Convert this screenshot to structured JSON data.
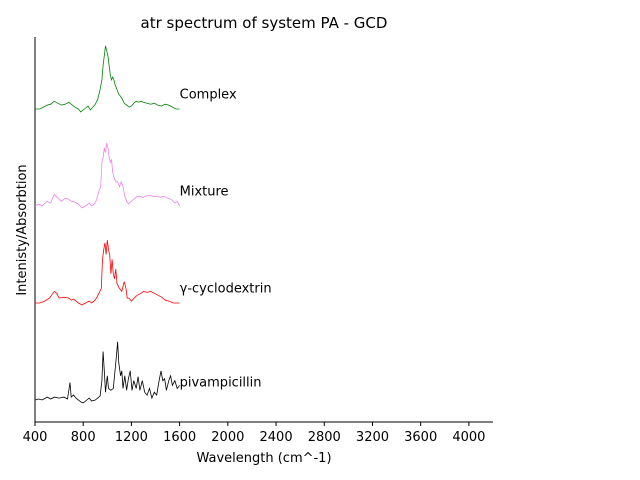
{
  "chart_data": {
    "type": "line",
    "title": "atr spectrum of system PA - GCD",
    "xlabel": "Wavelength (cm^-1)",
    "ylabel": "Intenisty/Absorbtion",
    "xlim": [
      400,
      4200
    ],
    "ylim": [
      0,
      4.0
    ],
    "x_ticks": [
      400,
      800,
      1200,
      1600,
      2000,
      2400,
      2800,
      3200,
      3600,
      4000
    ],
    "x_tick_labels": [
      "400",
      "800",
      "1200",
      "1600",
      "2000",
      "2400",
      "2800",
      "3200",
      "3600",
      "4000"
    ],
    "grid": false,
    "legend": "none",
    "series": [
      {
        "name": "pivampicillin",
        "color": "#000000",
        "label_at": [
          1600,
          0.18
        ],
        "points": [
          [
            400,
            0.0
          ],
          [
            430,
            0.01
          ],
          [
            460,
            0.0
          ],
          [
            500,
            0.03
          ],
          [
            530,
            0.01
          ],
          [
            560,
            0.03
          ],
          [
            600,
            0.02
          ],
          [
            640,
            0.03
          ],
          [
            670,
            0.01
          ],
          [
            690,
            0.18
          ],
          [
            700,
            0.03
          ],
          [
            720,
            0.05
          ],
          [
            740,
            0.02
          ],
          [
            780,
            -0.02
          ],
          [
            800,
            -0.03
          ],
          [
            830,
            0.0
          ],
          [
            850,
            0.02
          ],
          [
            870,
            -0.01
          ],
          [
            900,
            0.0
          ],
          [
            940,
            0.04
          ],
          [
            955,
            0.2
          ],
          [
            965,
            0.5
          ],
          [
            975,
            0.3
          ],
          [
            985,
            0.08
          ],
          [
            1000,
            0.25
          ],
          [
            1010,
            0.12
          ],
          [
            1030,
            0.1
          ],
          [
            1050,
            0.12
          ],
          [
            1075,
            0.45
          ],
          [
            1085,
            0.6
          ],
          [
            1095,
            0.38
          ],
          [
            1110,
            0.25
          ],
          [
            1120,
            0.3
          ],
          [
            1130,
            0.12
          ],
          [
            1145,
            0.25
          ],
          [
            1160,
            0.1
          ],
          [
            1175,
            0.22
          ],
          [
            1190,
            0.3
          ],
          [
            1205,
            0.1
          ],
          [
            1220,
            0.2
          ],
          [
            1240,
            0.12
          ],
          [
            1255,
            0.24
          ],
          [
            1270,
            0.1
          ],
          [
            1290,
            0.2
          ],
          [
            1310,
            0.08
          ],
          [
            1330,
            0.05
          ],
          [
            1350,
            0.12
          ],
          [
            1370,
            0.02
          ],
          [
            1390,
            0.08
          ],
          [
            1410,
            0.05
          ],
          [
            1430,
            0.2
          ],
          [
            1445,
            0.3
          ],
          [
            1460,
            0.2
          ],
          [
            1475,
            0.22
          ],
          [
            1490,
            0.1
          ],
          [
            1510,
            0.2
          ],
          [
            1525,
            0.25
          ],
          [
            1540,
            0.15
          ],
          [
            1560,
            0.2
          ],
          [
            1580,
            0.12
          ],
          [
            1600,
            0.15
          ]
        ]
      },
      {
        "name": "γ-cyclodextrin",
        "color": "#ff0000",
        "label_at": [
          1600,
          1.15
        ],
        "points": [
          [
            400,
            1.0
          ],
          [
            440,
            1.0
          ],
          [
            480,
            1.02
          ],
          [
            520,
            1.05
          ],
          [
            560,
            1.12
          ],
          [
            580,
            1.1
          ],
          [
            600,
            1.05
          ],
          [
            640,
            1.06
          ],
          [
            680,
            1.05
          ],
          [
            700,
            1.03
          ],
          [
            720,
            1.04
          ],
          [
            740,
            1.02
          ],
          [
            760,
            1.0
          ],
          [
            790,
            0.98
          ],
          [
            820,
            1.0
          ],
          [
            850,
            1.02
          ],
          [
            870,
            1.0
          ],
          [
            890,
            1.02
          ],
          [
            910,
            1.05
          ],
          [
            930,
            1.1
          ],
          [
            950,
            1.15
          ],
          [
            960,
            1.45
          ],
          [
            970,
            1.55
          ],
          [
            980,
            1.62
          ],
          [
            990,
            1.5
          ],
          [
            1000,
            1.65
          ],
          [
            1010,
            1.55
          ],
          [
            1020,
            1.5
          ],
          [
            1030,
            1.3
          ],
          [
            1040,
            1.45
          ],
          [
            1050,
            1.3
          ],
          [
            1060,
            1.25
          ],
          [
            1070,
            1.35
          ],
          [
            1080,
            1.2
          ],
          [
            1100,
            1.15
          ],
          [
            1120,
            1.12
          ],
          [
            1140,
            1.22
          ],
          [
            1155,
            1.15
          ],
          [
            1165,
            1.05
          ],
          [
            1180,
            1.05
          ],
          [
            1200,
            1.02
          ],
          [
            1230,
            1.06
          ],
          [
            1250,
            1.08
          ],
          [
            1280,
            1.1
          ],
          [
            1300,
            1.12
          ],
          [
            1330,
            1.11
          ],
          [
            1360,
            1.12
          ],
          [
            1390,
            1.1
          ],
          [
            1420,
            1.08
          ],
          [
            1450,
            1.06
          ],
          [
            1480,
            1.03
          ],
          [
            1510,
            1.02
          ],
          [
            1550,
            1.0
          ],
          [
            1600,
            1.0
          ]
        ]
      },
      {
        "name": "Mixture",
        "color": "#ee82ee",
        "label_at": [
          1600,
          2.15
        ],
        "points": [
          [
            400,
            2.0
          ],
          [
            430,
            2.02
          ],
          [
            460,
            2.0
          ],
          [
            500,
            2.05
          ],
          [
            530,
            2.03
          ],
          [
            560,
            2.12
          ],
          [
            590,
            2.08
          ],
          [
            620,
            2.05
          ],
          [
            650,
            2.08
          ],
          [
            680,
            2.07
          ],
          [
            700,
            2.05
          ],
          [
            730,
            2.04
          ],
          [
            760,
            2.02
          ],
          [
            790,
            1.98
          ],
          [
            820,
            2.0
          ],
          [
            850,
            2.03
          ],
          [
            870,
            2.0
          ],
          [
            890,
            2.02
          ],
          [
            910,
            2.06
          ],
          [
            930,
            2.15
          ],
          [
            945,
            2.2
          ],
          [
            955,
            2.45
          ],
          [
            965,
            2.5
          ],
          [
            975,
            2.6
          ],
          [
            985,
            2.55
          ],
          [
            995,
            2.65
          ],
          [
            1005,
            2.6
          ],
          [
            1015,
            2.5
          ],
          [
            1025,
            2.45
          ],
          [
            1035,
            2.48
          ],
          [
            1045,
            2.35
          ],
          [
            1055,
            2.3
          ],
          [
            1070,
            2.25
          ],
          [
            1085,
            2.25
          ],
          [
            1100,
            2.2
          ],
          [
            1115,
            2.25
          ],
          [
            1130,
            2.2
          ],
          [
            1145,
            2.1
          ],
          [
            1160,
            2.05
          ],
          [
            1175,
            2.02
          ],
          [
            1190,
            2.04
          ],
          [
            1210,
            2.06
          ],
          [
            1230,
            2.08
          ],
          [
            1250,
            2.1
          ],
          [
            1270,
            2.1
          ],
          [
            1290,
            2.09
          ],
          [
            1320,
            2.1
          ],
          [
            1350,
            2.11
          ],
          [
            1380,
            2.1
          ],
          [
            1410,
            2.1
          ],
          [
            1440,
            2.09
          ],
          [
            1470,
            2.1
          ],
          [
            1500,
            2.08
          ],
          [
            1530,
            2.07
          ],
          [
            1560,
            2.03
          ],
          [
            1580,
            2.05
          ],
          [
            1600,
            2.0
          ]
        ]
      },
      {
        "name": "Complex",
        "color": "#008000",
        "label_at": [
          1600,
          3.15
        ],
        "points": [
          [
            400,
            3.0
          ],
          [
            440,
            3.0
          ],
          [
            470,
            3.02
          ],
          [
            500,
            3.04
          ],
          [
            530,
            3.05
          ],
          [
            560,
            3.08
          ],
          [
            590,
            3.06
          ],
          [
            620,
            3.04
          ],
          [
            650,
            3.05
          ],
          [
            680,
            3.07
          ],
          [
            700,
            3.05
          ],
          [
            730,
            3.02
          ],
          [
            760,
            3.0
          ],
          [
            780,
            2.97
          ],
          [
            810,
            3.0
          ],
          [
            840,
            3.03
          ],
          [
            860,
            2.99
          ],
          [
            880,
            3.02
          ],
          [
            900,
            3.05
          ],
          [
            920,
            3.1
          ],
          [
            940,
            3.2
          ],
          [
            955,
            3.3
          ],
          [
            965,
            3.45
          ],
          [
            975,
            3.55
          ],
          [
            985,
            3.65
          ],
          [
            995,
            3.6
          ],
          [
            1005,
            3.55
          ],
          [
            1015,
            3.45
          ],
          [
            1025,
            3.35
          ],
          [
            1035,
            3.3
          ],
          [
            1045,
            3.33
          ],
          [
            1055,
            3.3
          ],
          [
            1065,
            3.25
          ],
          [
            1080,
            3.2
          ],
          [
            1095,
            3.15
          ],
          [
            1110,
            3.13
          ],
          [
            1125,
            3.1
          ],
          [
            1140,
            3.06
          ],
          [
            1160,
            3.04
          ],
          [
            1180,
            3.02
          ],
          [
            1200,
            3.03
          ],
          [
            1220,
            3.06
          ],
          [
            1240,
            3.08
          ],
          [
            1260,
            3.07
          ],
          [
            1280,
            3.08
          ],
          [
            1300,
            3.07
          ],
          [
            1330,
            3.06
          ],
          [
            1360,
            3.05
          ],
          [
            1390,
            3.06
          ],
          [
            1420,
            3.04
          ],
          [
            1450,
            3.03
          ],
          [
            1480,
            3.05
          ],
          [
            1510,
            3.04
          ],
          [
            1540,
            3.02
          ],
          [
            1570,
            3.0
          ],
          [
            1600,
            3.0
          ]
        ]
      }
    ]
  }
}
